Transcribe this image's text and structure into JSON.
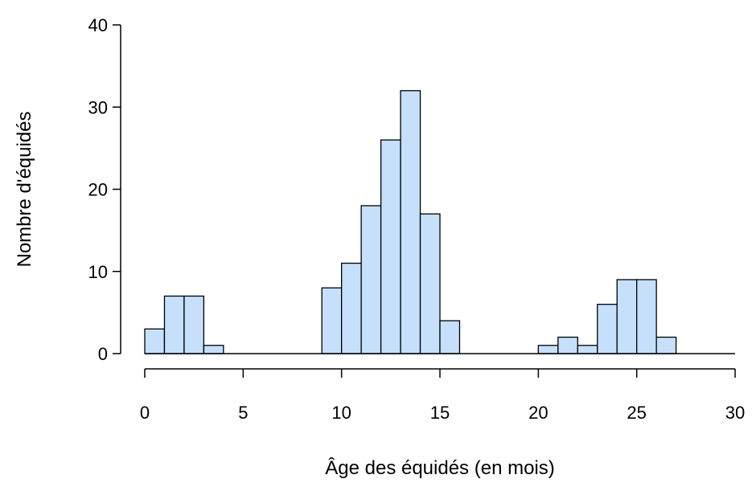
{
  "chart_data": {
    "type": "bar",
    "title": "",
    "xlabel": "Âge des équidés (en mois)",
    "ylabel": "Nombre d'équidés",
    "bin_width": 1,
    "bin_starts": [
      0,
      1,
      2,
      3,
      4,
      5,
      6,
      7,
      8,
      9,
      10,
      11,
      12,
      13,
      14,
      15,
      16,
      17,
      18,
      19,
      20,
      21,
      22,
      23,
      24,
      25,
      26,
      27,
      28,
      29
    ],
    "values": [
      3,
      7,
      7,
      1,
      0,
      0,
      0,
      0,
      0,
      8,
      11,
      18,
      26,
      32,
      17,
      4,
      0,
      0,
      0,
      0,
      1,
      2,
      1,
      6,
      9,
      9,
      2,
      0,
      0,
      0
    ],
    "xlim": [
      0,
      30
    ],
    "ylim": [
      0,
      40
    ],
    "x_ticks": [
      0,
      5,
      10,
      15,
      20,
      25,
      30
    ],
    "y_ticks": [
      0,
      10,
      20,
      30,
      40
    ],
    "grid": false,
    "bar_color": "#c6e0fb",
    "edge_color": "#000000"
  }
}
